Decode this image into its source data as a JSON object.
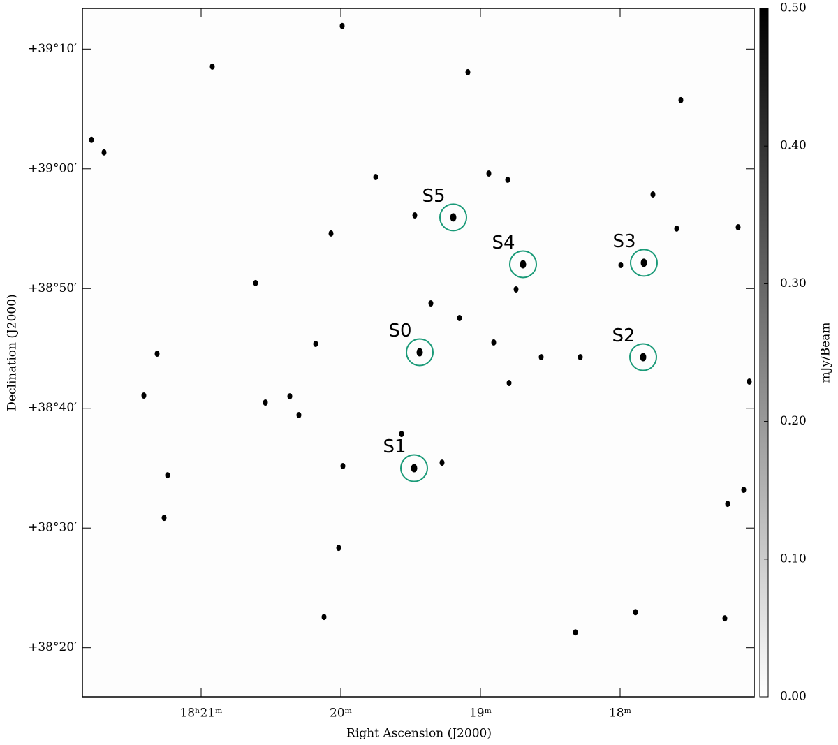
{
  "chart_data": {
    "type": "sky-image",
    "xlabel": "Right Ascension (J2000)",
    "ylabel": "Declination (J2000)",
    "xlim": [
      21.85,
      17.04
    ],
    "ylim": [
      15.9,
      73.4
    ],
    "xticks": [
      {
        "value": 21,
        "label": "18ʰ21ᵐ"
      },
      {
        "value": 20,
        "label": "20ᵐ"
      },
      {
        "value": 19,
        "label": "19ᵐ"
      },
      {
        "value": 18,
        "label": "18ᵐ"
      }
    ],
    "yticks": [
      {
        "value": 70,
        "label": "+39°10′"
      },
      {
        "value": 60,
        "label": "+39°00′"
      },
      {
        "value": 50,
        "label": "+38°50′"
      },
      {
        "value": 40,
        "label": "+38°40′"
      },
      {
        "value": 30,
        "label": "+38°30′"
      },
      {
        "value": 20,
        "label": "+38°20′"
      }
    ],
    "colorbar": {
      "label": "mJy/Beam",
      "lim": [
        0,
        0.5
      ],
      "colors": [
        "#ffffff",
        "#000000"
      ],
      "ticks": [
        {
          "value": 0,
          "label": "0.00"
        },
        {
          "value": 0.1,
          "label": "0.10"
        },
        {
          "value": 0.2,
          "label": "0.20"
        },
        {
          "value": 0.3,
          "label": "0.30"
        },
        {
          "value": 0.4,
          "label": "0.40"
        },
        {
          "value": 0.5,
          "label": "0.50"
        }
      ]
    },
    "marked_sources": {
      "labels": [
        "S0",
        "S1",
        "S2",
        "S3",
        "S4",
        "S5"
      ],
      "color": "#1a9a78",
      "x": [
        19.435,
        19.475,
        17.835,
        17.83,
        18.695,
        19.195
      ],
      "y": [
        44.68,
        35.0,
        44.27,
        52.15,
        52.03,
        55.94
      ]
    },
    "other_sources": {
      "color": "#000000",
      "x": [
        20.92,
        19.99,
        19.09,
        17.565,
        17.765,
        18.805,
        18.94,
        19.47,
        20.07,
        17.995,
        18.905,
        19.15,
        20.18,
        18.565,
        18.285,
        18.795,
        21.41,
        20.365,
        20.54,
        20.3,
        19.565,
        19.985,
        19.275,
        17.115,
        17.23,
        21.265,
        20.015,
        17.25,
        17.89,
        20.12,
        18.32,
        21.315,
        21.24,
        21.695,
        21.785,
        19.75,
        20.61,
        19.355,
        18.745,
        17.595,
        17.075,
        17.155
      ],
      "y": [
        68.54,
        71.93,
        68.07,
        65.74,
        57.86,
        59.09,
        59.61,
        56.11,
        54.6,
        51.97,
        45.5,
        47.54,
        45.38,
        44.27,
        44.27,
        42.11,
        41.06,
        41.0,
        40.48,
        39.43,
        37.85,
        35.17,
        35.46,
        33.19,
        32.02,
        30.85,
        28.34,
        22.45,
        22.97,
        22.57,
        21.28,
        44.56,
        34.41,
        61.37,
        62.42,
        59.32,
        50.46,
        48.76,
        49.93,
        55.01,
        42.23,
        55.12
      ]
    }
  }
}
